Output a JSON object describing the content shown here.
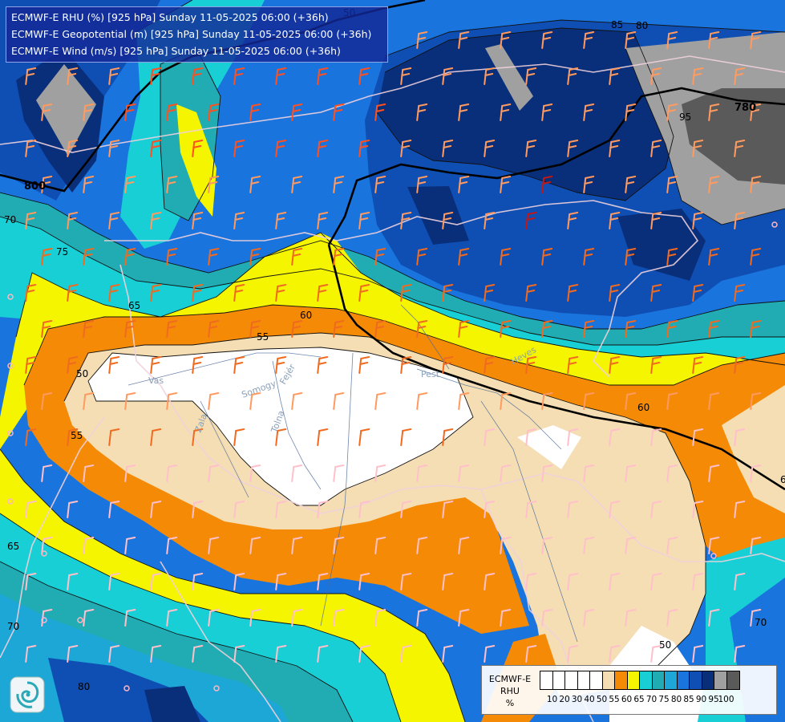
{
  "header": {
    "line1": "ECMWF-E RHU (%) [925 hPa] Sunday 11-05-2025 06:00 (+36h)",
    "line2": "ECMWF-E Geopotential (m) [925 hPa] Sunday 11-05-2025 06:00 (+36h)",
    "line3": "ECMWF-E Wind (m/s) [925 hPa] Sunday 11-05-2025 06:00 (+36h)"
  },
  "legend": {
    "title_model": "ECMWF-E",
    "title_var": "RHU",
    "title_unit": "%",
    "ticks": [
      "10",
      "20",
      "30",
      "40",
      "50",
      "55",
      "60",
      "65",
      "70",
      "75",
      "80",
      "85",
      "90",
      "95",
      "100"
    ],
    "colors": [
      "#ffffff",
      "#ffffff",
      "#ffffff",
      "#ffffff",
      "#ffffff",
      "#f5deb3",
      "#f58a07",
      "#f5f500",
      "#18cfd5",
      "#21acb3",
      "#1da7d6",
      "#1a74de",
      "#0f4fb4",
      "#0a2f7a",
      "#a0a0a0",
      "#5a5a5a"
    ]
  },
  "contours": {
    "geopotential": [
      "800",
      "780"
    ],
    "rhu": [
      "50",
      "55",
      "60",
      "65",
      "70",
      "75",
      "80",
      "85",
      "95",
      "50",
      "55",
      "60",
      "65",
      "70",
      "80",
      "70",
      "60",
      "50"
    ]
  },
  "places": [
    "Vas",
    "Somogy",
    "Fejér",
    "Zala",
    "Tolna",
    "Pest",
    "Heves"
  ]
}
